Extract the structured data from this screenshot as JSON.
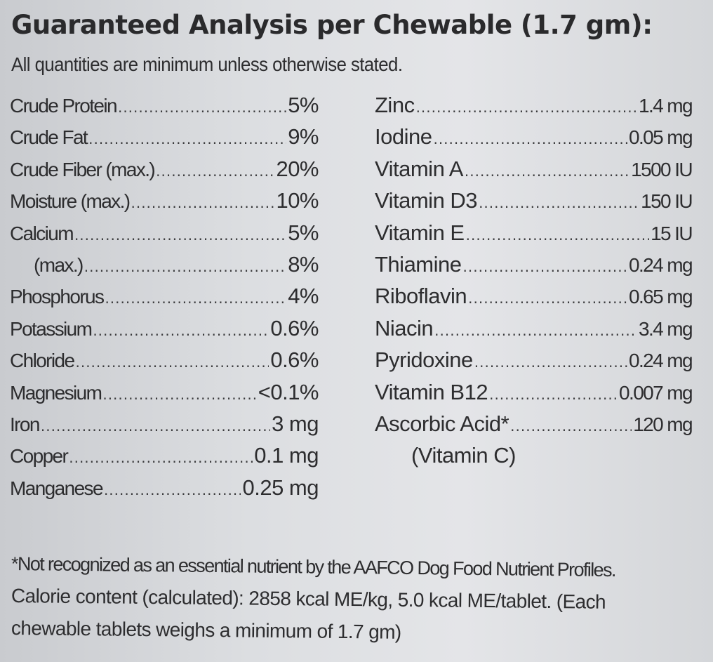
{
  "title": "Guaranteed Analysis per Chewable (1.7 gm):",
  "subtitle": "All quantities are minimum unless otherwise stated.",
  "left_items": [
    {
      "name": "Crude Protein",
      "value": "5%"
    },
    {
      "name": "Crude Fat",
      "value": "9%"
    },
    {
      "name": "Crude Fiber (max.)",
      "value": "20%"
    },
    {
      "name": "Moisture (max.)",
      "value": "10%"
    },
    {
      "name": "Calcium",
      "value": "5%"
    },
    {
      "name": "(max.)",
      "value": "8%"
    },
    {
      "name": "Phosphorus",
      "value": "4%"
    },
    {
      "name": "Potassium",
      "value": "0.6%"
    },
    {
      "name": "Chloride",
      "value": "0.6%"
    },
    {
      "name": "Magnesium",
      "value": "<0.1%"
    },
    {
      "name": "Iron",
      "value": "3 mg"
    },
    {
      "name": "Copper",
      "value": "0.1 mg"
    },
    {
      "name": "Manganese",
      "value": "0.25 mg"
    }
  ],
  "right_items": [
    {
      "name": "Zinc",
      "value": "1.4 mg"
    },
    {
      "name": "Iodine",
      "value": "0.05 mg"
    },
    {
      "name": "Vitamin A",
      "value": "1500 IU"
    },
    {
      "name": "Vitamin D3",
      "value": "150 IU"
    },
    {
      "name": "Vitamin E",
      "value": "15 IU"
    },
    {
      "name": "Thiamine",
      "value": "0.24 mg"
    },
    {
      "name": "Riboflavin",
      "value": "0.65 mg"
    },
    {
      "name": "Niacin",
      "value": "3.4 mg"
    },
    {
      "name": "Pyridoxine",
      "value": "0.24 mg"
    },
    {
      "name": "Vitamin B12",
      "value": "0.007 mg"
    },
    {
      "name": "Ascorbic Acid*",
      "value": "120 mg"
    },
    {
      "name": "(Vitamin C)",
      "value": ""
    }
  ],
  "footnotes": {
    "line1": "*Not recognized as an essential nutrient by the AAFCO Dog Food Nutrient Profiles.",
    "line2": "Calorie content (calculated): 2858 kcal ME/kg, 5.0 kcal ME/tablet. (Each",
    "line3": "chewable tablets weighs a minimum of 1.7 gm)"
  }
}
